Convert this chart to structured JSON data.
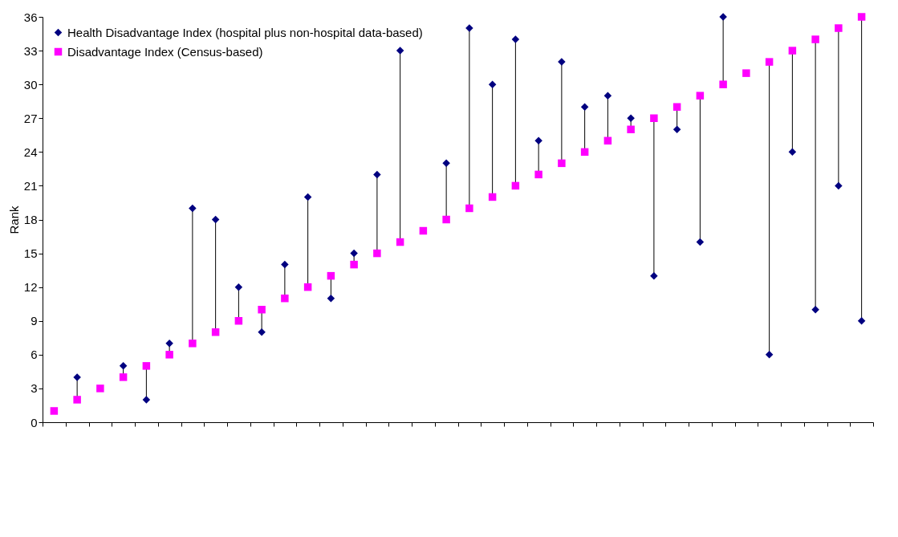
{
  "chart_data": {
    "type": "scatter",
    "ylabel": "Rank",
    "categories": [
      null,
      null,
      null,
      null,
      null,
      null,
      null,
      null,
      null,
      null,
      null,
      null,
      null,
      null,
      null,
      null,
      null,
      null,
      null,
      null,
      null,
      null,
      null,
      null,
      null,
      null,
      null,
      null,
      null,
      null,
      null,
      null,
      null,
      null,
      null,
      null
    ],
    "series": [
      {
        "name": "Health Disadvantage Index (hospital plus non-hospital data-based)",
        "color": "#000080",
        "marker": "diamond",
        "values": [
          null,
          4,
          null,
          5,
          2,
          7,
          19,
          18,
          12,
          8,
          14,
          20,
          11,
          15,
          22,
          33,
          null,
          23,
          35,
          30,
          34,
          25,
          32,
          28,
          29,
          27,
          13,
          26,
          16,
          36,
          null,
          6,
          24,
          10,
          21,
          9
        ]
      },
      {
        "name": "Disadvantage Index (Census-based)",
        "color": "#ff00ff",
        "marker": "square",
        "values": [
          1,
          2,
          3,
          4,
          5,
          6,
          7,
          8,
          9,
          10,
          11,
          12,
          13,
          14,
          15,
          16,
          17,
          18,
          19,
          20,
          21,
          22,
          23,
          24,
          25,
          26,
          27,
          28,
          29,
          30,
          31,
          32,
          33,
          34,
          35,
          36
        ]
      }
    ],
    "ylim": [
      0,
      36
    ],
    "yticks": [
      0,
      3,
      6,
      9,
      12,
      15,
      18,
      21,
      24,
      27,
      30,
      33,
      36
    ],
    "grid": false,
    "legend": "top left"
  }
}
